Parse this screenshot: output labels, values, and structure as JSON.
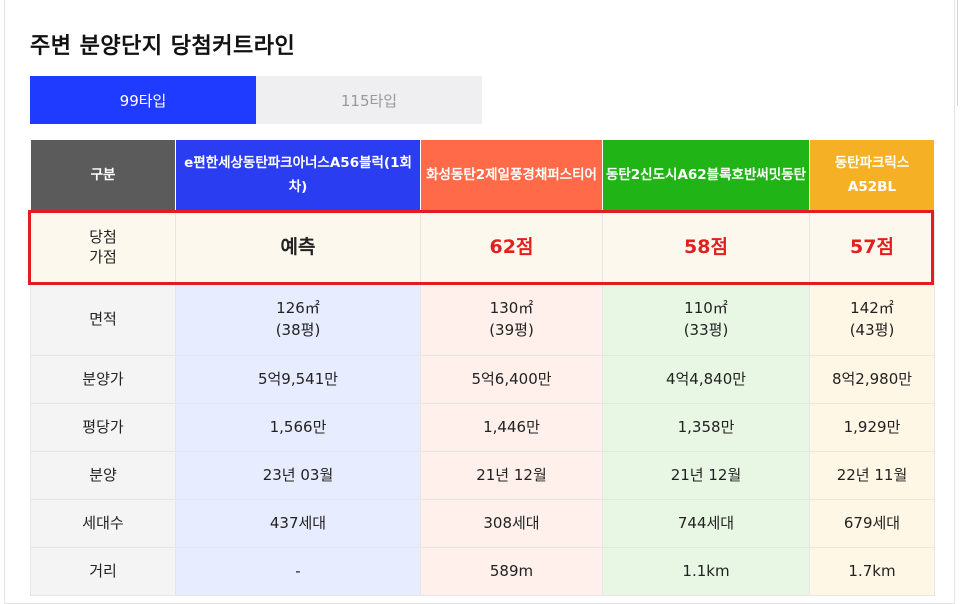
{
  "title": "주변 분양단지 당첨커트라인",
  "tabs": [
    {
      "label": "99타입",
      "active": true
    },
    {
      "label": "115타입",
      "active": false
    }
  ],
  "table": {
    "header": [
      "구분",
      "e편한세상동탄파크아너스A56블럭(1회차)",
      "화성동탄2제일풍경채퍼스티어",
      "동탄2신도시A62블록호반써밋동탄",
      "동탄파크릭스A52BL"
    ],
    "score_row": {
      "label": "당첨\n가점",
      "values": [
        "예측",
        "62점",
        "58점",
        "57점"
      ]
    },
    "area_row": {
      "label": "면적",
      "values": [
        {
          "m2": "126㎡",
          "pyeong": "(38평)"
        },
        {
          "m2": "130㎡",
          "pyeong": "(39평)"
        },
        {
          "m2": "110㎡",
          "pyeong": "(33평)"
        },
        {
          "m2": "142㎡",
          "pyeong": "(43평)"
        }
      ]
    },
    "rows": [
      {
        "label": "분양가",
        "values": [
          "5억9,541만",
          "5억6,400만",
          "4억4,840만",
          "8억2,980만"
        ]
      },
      {
        "label": "평당가",
        "values": [
          "1,566만",
          "1,446만",
          "1,358만",
          "1,929만"
        ]
      },
      {
        "label": "분양",
        "values": [
          "23년 03월",
          "21년 12월",
          "21년 12월",
          "22년 11월"
        ]
      },
      {
        "label": "세대수",
        "values": [
          "437세대",
          "308세대",
          "744세대",
          "679세대"
        ]
      },
      {
        "label": "거리",
        "values": [
          "-",
          "589m",
          "1.1km",
          "1.7km"
        ]
      }
    ]
  },
  "colors": {
    "tab_active": "#1f3bff",
    "header_gray": "#5b5b5b",
    "header_blue": "#2a3df0",
    "header_orange": "#ff6a48",
    "header_green": "#21b416",
    "header_yellow": "#f6b026",
    "highlight_red": "#e31b23",
    "score_red": "#e41e1e"
  }
}
